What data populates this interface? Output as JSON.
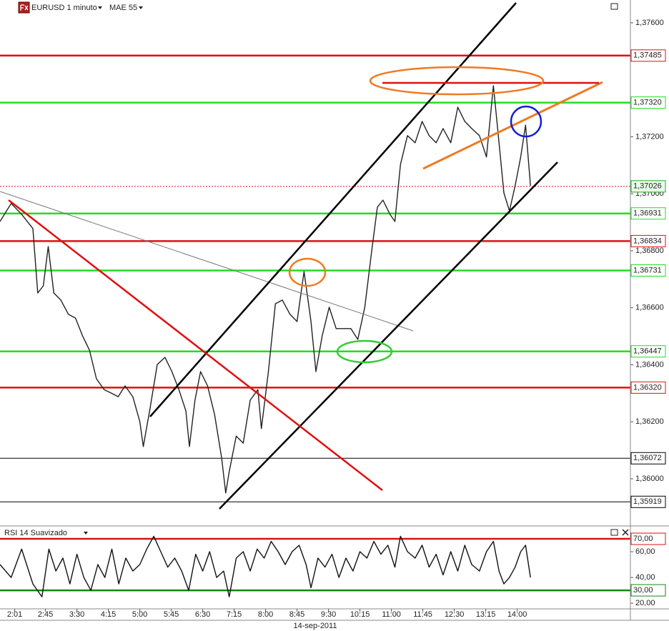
{
  "chart_data": [
    {
      "type": "line",
      "instrument": "EURUSD 1 minuto",
      "indicator": "MAE 55",
      "date": "14-sep-2011",
      "color": "#222222",
      "xlim": [
        "1:40",
        "16:42"
      ],
      "xticks": [
        "2:01",
        "2:45",
        "3:30",
        "4:15",
        "5:00",
        "5:45",
        "6:30",
        "7:15",
        "8:00",
        "8:45",
        "9:30",
        "10:15",
        "11:00",
        "11:45",
        "12:30",
        "13:15",
        "14:00"
      ],
      "ylim": [
        1.35837,
        1.3768
      ],
      "yticks": [
        {
          "value": 1.376,
          "label": "1,37600"
        },
        {
          "value": 1.372,
          "label": "1,37200"
        },
        {
          "value": 1.37,
          "label": "1,37000"
        },
        {
          "value": 1.368,
          "label": "1,36800"
        },
        {
          "value": 1.366,
          "label": "1,36600"
        },
        {
          "value": 1.364,
          "label": "1,36400"
        },
        {
          "value": 1.362,
          "label": "1,36200"
        },
        {
          "value": 1.36,
          "label": "1,36000"
        }
      ],
      "levels": [
        {
          "value": 1.37485,
          "label": "1,37485",
          "color": "#e01010"
        },
        {
          "value": 1.3732,
          "label": "1,37320",
          "color": "#22dd22"
        },
        {
          "value": 1.36931,
          "label": "1,36931",
          "color": "#22dd22"
        },
        {
          "value": 1.36834,
          "label": "1,36834",
          "color": "#e01010"
        },
        {
          "value": 1.36731,
          "label": "1,36731",
          "color": "#22dd22"
        },
        {
          "value": 1.36447,
          "label": "1,36447",
          "color": "#22dd22"
        },
        {
          "value": 1.3632,
          "label": "1,36320",
          "color": "#e01010"
        },
        {
          "value": 1.36072,
          "label": "1,36072",
          "color": "#000000"
        },
        {
          "value": 1.35919,
          "label": "1,35919",
          "color": "#000000"
        }
      ],
      "current_price": {
        "value": 1.37026,
        "label": "1,37026",
        "color": "#e01010"
      },
      "x": [
        "1:40",
        "1:56",
        "2:11",
        "2:27",
        "2:34",
        "2:42",
        "2:49",
        "2:57",
        "3:07",
        "3:18",
        "3:28",
        "3:38",
        "3:48",
        "3:58",
        "4:09",
        "4:19",
        "4:29",
        "4:39",
        "4:50",
        "5:00",
        "5:05",
        "5:15",
        "5:25",
        "5:36",
        "5:46",
        "5:56",
        "6:06",
        "6:11",
        "6:19",
        "6:27",
        "6:37",
        "6:47",
        "6:57",
        "7:03",
        "7:08",
        "7:18",
        "7:28",
        "7:38",
        "7:49",
        "7:54",
        "8:04",
        "8:14",
        "8:24",
        "8:35",
        "8:45",
        "8:55",
        "9:05",
        "9:12",
        "9:21",
        "9:31",
        "9:41",
        "9:51",
        "10:02",
        "10:12",
        "10:22",
        "10:27",
        "10:32",
        "10:40",
        "10:48",
        "10:58",
        "11:05",
        "11:13",
        "11:23",
        "11:34",
        "11:44",
        "11:54",
        "12:04",
        "12:14",
        "12:25",
        "12:35",
        "12:45",
        "12:55",
        "13:06",
        "13:16",
        "13:26",
        "13:34",
        "13:41",
        "13:49",
        "13:57",
        "14:05",
        "14:12",
        "14:19"
      ],
      "values": [
        1.36903,
        1.36966,
        1.36928,
        1.36878,
        1.36652,
        1.36677,
        1.36815,
        1.36652,
        1.36627,
        1.36577,
        1.36564,
        1.36502,
        1.36451,
        1.36351,
        1.36313,
        1.36301,
        1.36288,
        1.36326,
        1.36288,
        1.36201,
        1.36113,
        1.36251,
        1.36401,
        1.36426,
        1.36376,
        1.36313,
        1.36238,
        1.36113,
        1.36276,
        1.36376,
        1.36326,
        1.36226,
        1.36075,
        1.3595,
        1.36025,
        1.3615,
        1.36125,
        1.36276,
        1.36313,
        1.36176,
        1.36376,
        1.36614,
        1.36627,
        1.36577,
        1.36552,
        1.36727,
        1.36552,
        1.36376,
        1.36502,
        1.36602,
        1.36527,
        1.36527,
        1.36527,
        1.36489,
        1.36602,
        1.36702,
        1.36803,
        1.36953,
        1.36978,
        1.36928,
        1.36903,
        1.37103,
        1.37204,
        1.37179,
        1.37254,
        1.37204,
        1.37179,
        1.37229,
        1.37179,
        1.37304,
        1.37254,
        1.37229,
        1.37204,
        1.37129,
        1.37379,
        1.37179,
        1.37003,
        1.3694,
        1.37028,
        1.37129,
        1.37241,
        1.37028
      ]
    },
    {
      "type": "line",
      "title": "RSI 14 Suavizado",
      "color": "#111111",
      "xlim": [
        "1:40",
        "16:42"
      ],
      "ylim": [
        15.6,
        78.9
      ],
      "yticks": [
        {
          "value": 60,
          "label": "60,00"
        },
        {
          "value": 40,
          "label": "40,00"
        },
        {
          "value": 20,
          "label": "20,00"
        }
      ],
      "levels": [
        {
          "value": 70,
          "label": "70,00",
          "color": "#e01010"
        },
        {
          "value": 30,
          "label": "30,00",
          "color": "#118811"
        }
      ],
      "x": [
        "1:40",
        "1:56",
        "2:11",
        "2:27",
        "2:40",
        "2:50",
        "3:00",
        "3:10",
        "3:20",
        "3:30",
        "3:40",
        "3:50",
        "4:00",
        "4:10",
        "4:20",
        "4:30",
        "4:40",
        "4:50",
        "5:00",
        "5:10",
        "5:20",
        "5:30",
        "5:40",
        "5:50",
        "6:00",
        "6:10",
        "6:20",
        "6:30",
        "6:40",
        "6:50",
        "7:00",
        "7:08",
        "7:18",
        "7:28",
        "7:38",
        "7:48",
        "7:58",
        "8:08",
        "8:18",
        "8:28",
        "8:38",
        "8:48",
        "8:58",
        "9:05",
        "9:15",
        "9:25",
        "9:35",
        "9:45",
        "9:55",
        "10:05",
        "10:15",
        "10:25",
        "10:35",
        "10:45",
        "10:55",
        "11:05",
        "11:13",
        "11:23",
        "11:34",
        "11:44",
        "11:54",
        "12:04",
        "12:14",
        "12:25",
        "12:35",
        "12:45",
        "12:55",
        "13:06",
        "13:16",
        "13:26",
        "13:34",
        "13:41",
        "13:49",
        "13:57",
        "14:05",
        "14:12",
        "14:19"
      ],
      "values": [
        50,
        40,
        62,
        35,
        25,
        62,
        45,
        55,
        35,
        58,
        40,
        30,
        50,
        40,
        62,
        35,
        55,
        45,
        50,
        62,
        72,
        60,
        48,
        55,
        45,
        30,
        58,
        45,
        60,
        40,
        45,
        25,
        55,
        60,
        45,
        62,
        55,
        68,
        60,
        50,
        60,
        65,
        50,
        32,
        55,
        48,
        58,
        40,
        55,
        45,
        60,
        55,
        68,
        58,
        65,
        48,
        72,
        60,
        55,
        65,
        48,
        58,
        42,
        60,
        45,
        65,
        50,
        45,
        60,
        68,
        45,
        35,
        40,
        48,
        60,
        65,
        40
      ]
    }
  ]
}
